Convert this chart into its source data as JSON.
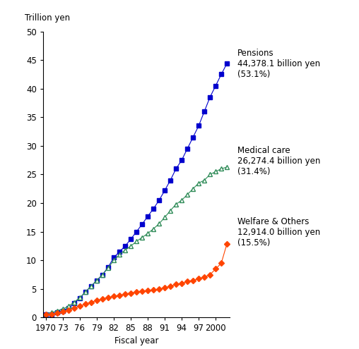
{
  "years": [
    1970,
    1971,
    1972,
    1973,
    1974,
    1975,
    1976,
    1977,
    1978,
    1979,
    1980,
    1981,
    1982,
    1983,
    1984,
    1985,
    1986,
    1987,
    1988,
    1989,
    1990,
    1991,
    1992,
    1993,
    1994,
    1995,
    1996,
    1997,
    1998,
    1999,
    2000,
    2001,
    2002
  ],
  "pensions": [
    0.5,
    0.6,
    0.9,
    1.2,
    1.7,
    2.5,
    3.4,
    4.5,
    5.5,
    6.5,
    7.5,
    8.8,
    10.5,
    11.5,
    12.5,
    13.7,
    15.0,
    16.3,
    17.7,
    19.0,
    20.5,
    22.2,
    24.0,
    26.0,
    27.5,
    29.5,
    31.5,
    33.5,
    36.0,
    38.5,
    40.5,
    42.5,
    44.4
  ],
  "medical_care": [
    0.7,
    0.9,
    1.2,
    1.5,
    2.0,
    2.7,
    3.5,
    4.5,
    5.5,
    6.5,
    7.5,
    8.7,
    10.0,
    11.0,
    11.8,
    12.5,
    13.3,
    14.0,
    14.7,
    15.5,
    16.4,
    17.5,
    18.7,
    19.8,
    20.5,
    21.5,
    22.5,
    23.5,
    24.0,
    25.0,
    25.5,
    26.0,
    26.3
  ],
  "welfare_others": [
    0.5,
    0.6,
    0.8,
    1.0,
    1.3,
    1.7,
    2.0,
    2.4,
    2.7,
    3.0,
    3.3,
    3.5,
    3.7,
    3.9,
    4.1,
    4.3,
    4.5,
    4.6,
    4.7,
    4.8,
    5.0,
    5.2,
    5.5,
    5.8,
    6.0,
    6.3,
    6.5,
    6.8,
    7.1,
    7.5,
    8.5,
    9.5,
    12.9
  ],
  "pensions_label": "Pensions\n44,378.1 billion yen\n(53.1%)",
  "medical_label": "Medical care\n26,274.4 billion yen\n(31.4%)",
  "welfare_label": "Welfare & Others\n12,914.0 billion yen\n(15.5%)",
  "ylabel": "Trillion yen",
  "xlabel": "Fiscal year",
  "ylim": [
    0,
    50
  ],
  "xlim": [
    1969.5,
    2002.5
  ],
  "yticks": [
    0,
    5,
    10,
    15,
    20,
    25,
    30,
    35,
    40,
    45,
    50
  ],
  "xticks": [
    1970,
    1973,
    1976,
    1979,
    1982,
    1985,
    1988,
    1991,
    1994,
    1997,
    2000
  ],
  "xtick_labels": [
    "1970",
    "73",
    "76",
    "79",
    "82",
    "85",
    "88",
    "91",
    "94",
    "97",
    "2000"
  ],
  "pensions_color": "#0000CD",
  "medical_color": "#2E8B57",
  "welfare_color": "#FF4500",
  "background_color": "#ffffff",
  "fontsize": 8.5,
  "pensions_ann_x": 1993.0,
  "pensions_ann_y": 48.5,
  "medical_ann_x": 1993.0,
  "medical_ann_y": 31.5,
  "welfare_ann_x": 1993.0,
  "welfare_ann_y": 17.5
}
